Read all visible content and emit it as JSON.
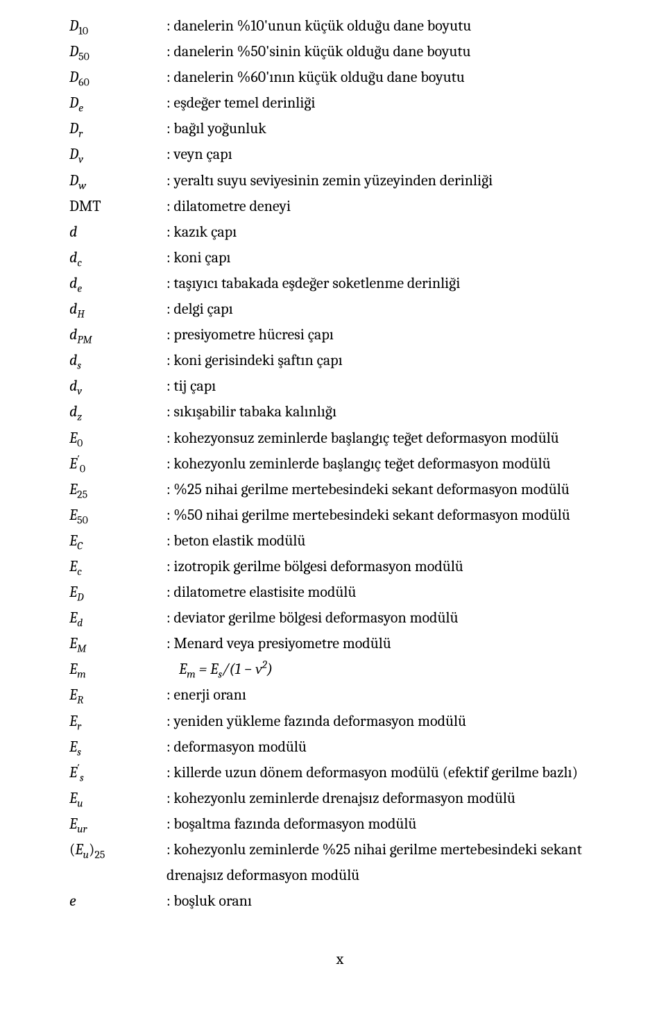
{
  "rows": [
    {
      "sym_base": "D",
      "sym_sub": "10",
      "desc": ": danelerin %10'unun küçük olduğu dane boyutu"
    },
    {
      "sym_base": "D",
      "sym_sub": "50",
      "desc": ": danelerin %50'sinin küçük olduğu dane boyutu"
    },
    {
      "sym_base": "D",
      "sym_sub": "60",
      "desc": ": danelerin %60'ının küçük olduğu dane boyutu"
    },
    {
      "sym_base": "D",
      "sym_sub": "e",
      "sub_italic": true,
      "desc": ": eşdeğer temel derinliği"
    },
    {
      "sym_base": "D",
      "sym_sub": "r",
      "sub_italic": true,
      "desc": ": bağıl yoğunluk"
    },
    {
      "sym_base": "D",
      "sym_sub": "v",
      "sub_italic": true,
      "desc": ": veyn çapı"
    },
    {
      "sym_base": "D",
      "sym_sub": "w",
      "sub_italic": true,
      "desc": ": yeraltı suyu seviyesinin zemin yüzeyinden derinliği"
    },
    {
      "sym_base": "DMT",
      "upright": true,
      "desc": ": dilatometre deneyi"
    },
    {
      "sym_base": "d",
      "desc": ": kazık çapı"
    },
    {
      "sym_base": "d",
      "sym_sub": "c",
      "sub_italic": true,
      "desc": ": koni çapı"
    },
    {
      "sym_base": "d",
      "sym_sub": "e",
      "sub_italic": true,
      "desc": ": taşıyıcı tabakada eşdeğer soketlenme derinliği"
    },
    {
      "sym_base": "d",
      "sym_sub": "H",
      "sub_italic": true,
      "desc": ": delgi çapı"
    },
    {
      "sym_base": "d",
      "sym_sub": "PM",
      "sub_italic": true,
      "desc": ": presiyometre hücresi çapı"
    },
    {
      "sym_base": "d",
      "sym_sub": "s",
      "sub_italic": true,
      "desc": ": koni gerisindeki şaftın çapı"
    },
    {
      "sym_base": "d",
      "sym_sub": "v",
      "sub_italic": true,
      "desc": ": tij çapı"
    },
    {
      "sym_base": "d",
      "sym_sub": "z",
      "sub_italic": true,
      "desc": ": sıkışabilir tabaka kalınlığı"
    },
    {
      "sym_base": "E",
      "sym_sub": "0",
      "desc": ": kohezyonsuz zeminlerde başlangıç teğet deformasyon modülü"
    },
    {
      "sym_base": "E",
      "sym_sup": "′",
      "sym_sub": "0",
      "desc": ": kohezyonlu zeminlerde başlangıç teğet deformasyon modülü"
    },
    {
      "sym_base": "E",
      "sym_sub": "25",
      "desc": ": %25 nihai gerilme mertebesindeki sekant deformasyon modülü"
    },
    {
      "sym_base": "E",
      "sym_sub": "50",
      "desc": ": %50 nihai gerilme mertebesindeki sekant deformasyon modülü"
    },
    {
      "sym_base": "E",
      "sym_sub": "C",
      "sub_italic": true,
      "desc": ": beton elastik modülü"
    },
    {
      "sym_base": "E",
      "sym_sub": "c",
      "sub_italic": true,
      "desc": ": izotropik gerilme bölgesi deformasyon modülü"
    },
    {
      "sym_base": "E",
      "sym_sub": "D",
      "sub_italic": true,
      "desc": ": dilatometre elastisite modülü"
    },
    {
      "sym_base": "E",
      "sym_sub": "d",
      "sub_italic": true,
      "desc": ": deviator gerilme bölgesi deformasyon modülü"
    },
    {
      "sym_base": "E",
      "sym_sub": "M",
      "sub_italic": true,
      "desc": ": Menard veya presiyometre modülü"
    },
    {
      "sym_base": "E",
      "sym_sub": "m",
      "sub_italic": true,
      "formula": "E<sub>m</sub> = E<sub>s</sub>/(1 − ν<sup>2</sup>)"
    },
    {
      "sym_base": "E",
      "sym_sub": "R",
      "sub_italic": true,
      "desc": ": enerji oranı"
    },
    {
      "sym_base": "E",
      "sym_sub": "r",
      "sub_italic": true,
      "desc": ": yeniden yükleme fazında deformasyon modülü"
    },
    {
      "sym_base": "E",
      "sym_sub": "s",
      "sub_italic": true,
      "desc": ": deformasyon modülü"
    },
    {
      "sym_base": "E",
      "sym_sup": "′",
      "sym_sub": "s",
      "sub_italic": true,
      "desc": ": killerde uzun dönem deformasyon modülü (efektif gerilme bazlı)"
    },
    {
      "sym_base": "E",
      "sym_sub": "u",
      "sub_italic": true,
      "desc": ": kohezyonlu zeminlerde drenajsız deformasyon modülü"
    },
    {
      "sym_base": "E",
      "sym_sub": "ur",
      "sub_italic": true,
      "desc": ": boşaltma fazında deformasyon modülü"
    },
    {
      "sym_paren": true,
      "sym_base": "E",
      "sym_sub_inner": "u",
      "sym_sub": "25",
      "desc": ": kohezyonlu zeminlerde %25 nihai gerilme mertebesindeki sekant",
      "cont": "drenajsız deformasyon modülü"
    },
    {
      "sym_base": "e",
      "desc": ": boşluk oranı"
    }
  ],
  "page_number": "x"
}
